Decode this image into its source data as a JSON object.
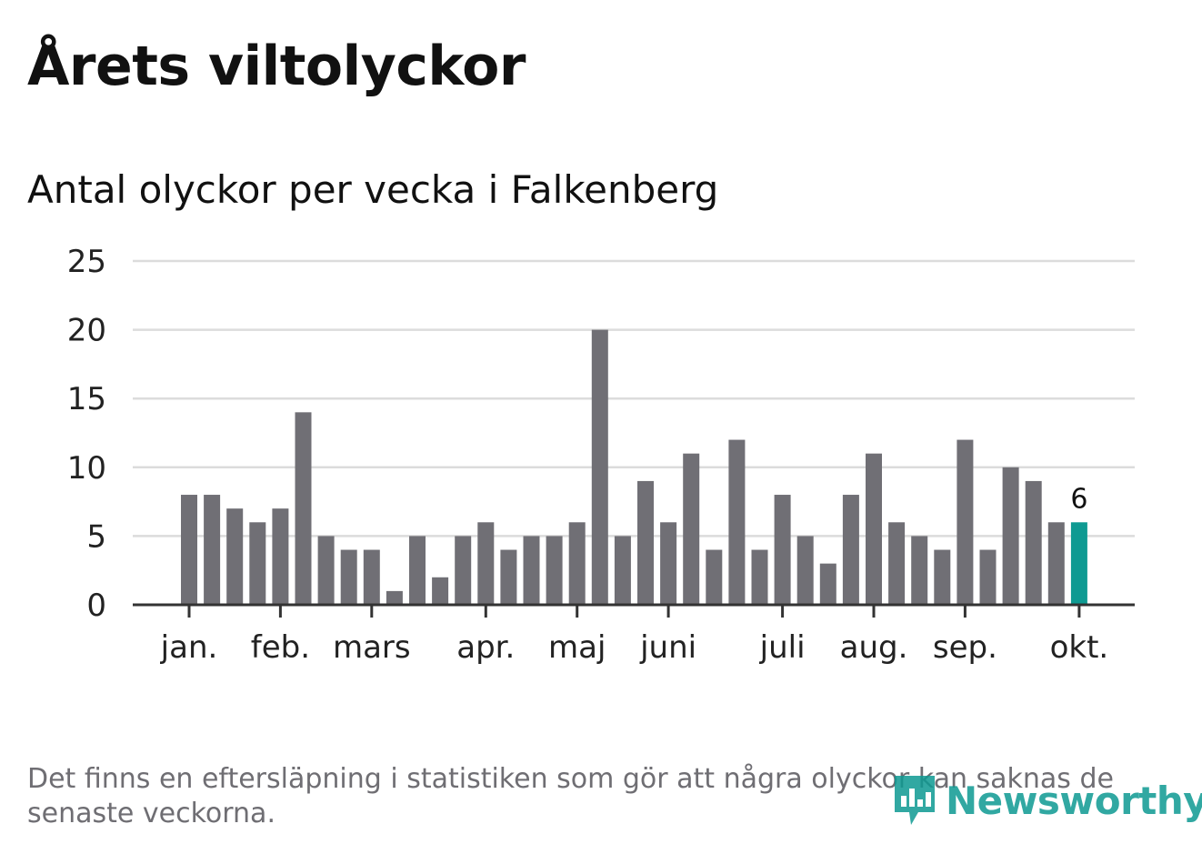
{
  "title": "Årets viltolyckor",
  "subtitle": "Antal olyckor per vecka i Falkenberg",
  "note": "Det finns en eftersläpning i statistiken som gör att några olyckor kan saknas de senaste veckorna.",
  "brand": {
    "name": "Newsworthy"
  },
  "colors": {
    "bar": "#706f75",
    "highlight": "#0e9a92",
    "grid": "#dcdcdc",
    "axis": "#333333",
    "text": "#111111",
    "note": "#6f6e73"
  },
  "icons": {
    "logo": "bar-chart-speech-icon"
  },
  "chart_data": {
    "type": "bar",
    "title": "Antal olyckor per vecka i Falkenberg",
    "xlabel": "",
    "ylabel": "",
    "ylim": [
      0,
      25
    ],
    "yticks": [
      0,
      5,
      10,
      15,
      20,
      25
    ],
    "grid": true,
    "values": [
      8,
      8,
      7,
      6,
      7,
      14,
      5,
      4,
      4,
      1,
      5,
      2,
      5,
      6,
      4,
      5,
      5,
      6,
      20,
      5,
      9,
      6,
      11,
      4,
      12,
      4,
      8,
      5,
      3,
      8,
      11,
      6,
      5,
      4,
      12,
      4,
      10,
      9,
      6,
      6
    ],
    "highlight_index": 39,
    "highlight_label": "6",
    "month_labels": [
      {
        "label": "jan.",
        "bar": 0
      },
      {
        "label": "feb.",
        "bar": 4
      },
      {
        "label": "mars",
        "bar": 8
      },
      {
        "label": "apr.",
        "bar": 13
      },
      {
        "label": "maj",
        "bar": 17
      },
      {
        "label": "juni",
        "bar": 21
      },
      {
        "label": "juli",
        "bar": 26
      },
      {
        "label": "aug.",
        "bar": 30
      },
      {
        "label": "sep.",
        "bar": 34
      },
      {
        "label": "okt.",
        "bar": 39
      }
    ]
  }
}
